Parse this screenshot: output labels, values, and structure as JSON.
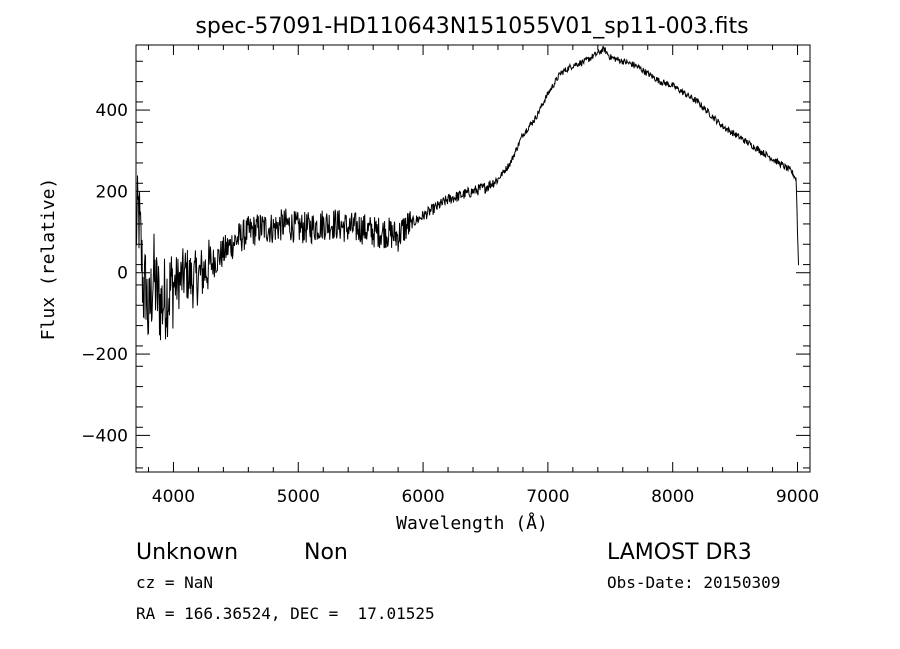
{
  "chart_data": {
    "type": "line",
    "title": "spec-57091-HD110643N151055V01_sp11-003.fits",
    "xlabel": "Wavelength (Å)",
    "ylabel": "Flux (relative)",
    "xlim": [
      3700,
      9100
    ],
    "ylim": [
      -490,
      560
    ],
    "x_ticks": [
      4000,
      5000,
      6000,
      7000,
      8000,
      9000
    ],
    "y_ticks": [
      -400,
      -200,
      0,
      200,
      400
    ],
    "x_tick_labels": [
      "4000",
      "5000",
      "6000",
      "7000",
      "8000",
      "9000"
    ],
    "y_tick_labels": [
      "−400",
      "−200",
      "0",
      "200",
      "400"
    ],
    "grid": false,
    "legend": "none",
    "line_color": "#000000",
    "series": [
      {
        "x": [
          3700,
          3720,
          3740,
          3760,
          3780,
          3800,
          3820,
          3840,
          3860,
          3880,
          3900,
          3950,
          4000,
          4050,
          4100,
          4150,
          4200,
          4300,
          4400,
          4500,
          4600,
          4700,
          4800,
          4900,
          5000,
          5100,
          5200,
          5300,
          5400,
          5500,
          5600,
          5700,
          5800,
          5850,
          5900,
          6000,
          6100,
          6200,
          6300,
          6400,
          6500,
          6600,
          6700,
          6800,
          6900,
          7000,
          7100,
          7200,
          7300,
          7400,
          7450,
          7500,
          7600,
          7700,
          7800,
          7900,
          8000,
          8100,
          8200,
          8300,
          8400,
          8500,
          8600,
          8700,
          8800,
          8900,
          8950,
          8990,
          9000,
          9010
        ],
        "y": [
          100,
          150,
          60,
          -50,
          -30,
          -120,
          -60,
          0,
          -40,
          -60,
          -80,
          -50,
          -30,
          -20,
          0,
          -20,
          -10,
          20,
          50,
          80,
          100,
          110,
          110,
          120,
          110,
          110,
          120,
          120,
          110,
          110,
          100,
          100,
          90,
          110,
          120,
          140,
          160,
          180,
          190,
          200,
          210,
          230,
          270,
          340,
          380,
          440,
          490,
          510,
          520,
          540,
          550,
          530,
          520,
          510,
          490,
          470,
          460,
          440,
          420,
          390,
          360,
          340,
          320,
          300,
          280,
          260,
          250,
          230,
          100,
          0
        ]
      }
    ],
    "annotations": {
      "object_class": "Unknown",
      "object_subclass": "Non",
      "cz": "cz = NaN",
      "coords": "RA = 166.36524, DEC =  17.01525",
      "survey": "LAMOST DR3",
      "obs_date": "Obs-Date: 20150309"
    }
  }
}
